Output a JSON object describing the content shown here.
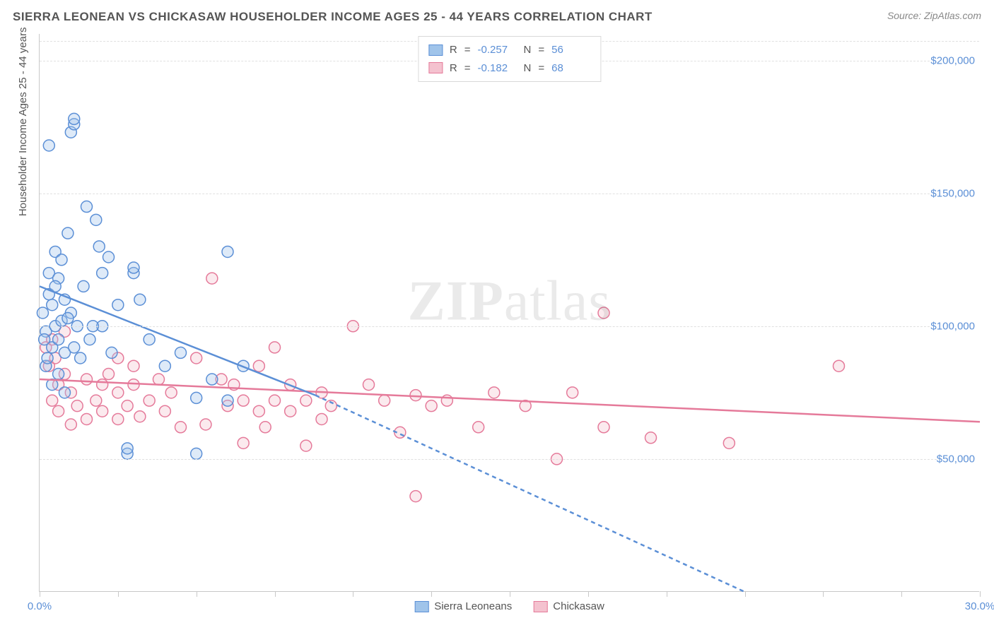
{
  "title": "SIERRA LEONEAN VS CHICKASAW HOUSEHOLDER INCOME AGES 25 - 44 YEARS CORRELATION CHART",
  "source": "Source: ZipAtlas.com",
  "ylabel": "Householder Income Ages 25 - 44 years",
  "watermark_bold": "ZIP",
  "watermark_rest": "atlas",
  "chart": {
    "type": "scatter",
    "background_color": "#ffffff",
    "grid_color": "#e0e0e0",
    "axis_color": "#c8c8c8",
    "label_color": "#5b8fd6",
    "text_color": "#555555",
    "xlim": [
      0,
      30
    ],
    "ylim": [
      0,
      210000
    ],
    "xticks": [
      0,
      2.5,
      5,
      7.5,
      10,
      12.5,
      15,
      17.5,
      20,
      22.5,
      25,
      27.5,
      30
    ],
    "xticks_labeled": {
      "0": "0.0%",
      "30": "30.0%"
    },
    "yticks": [
      50000,
      100000,
      150000,
      200000
    ],
    "ytick_labels": [
      "$50,000",
      "$100,000",
      "$150,000",
      "$200,000"
    ],
    "marker_radius": 8,
    "line_width": 2.5
  },
  "series": {
    "sierra_leoneans": {
      "label": "Sierra Leoneans",
      "color_fill": "#a0c4ea",
      "color_stroke": "#5b8fd6",
      "r_label": "R",
      "r_value": "-0.257",
      "n_label": "N",
      "n_value": "56",
      "trend_solid": {
        "x1": 0,
        "y1": 115000,
        "x2": 8.8,
        "y2": 74000
      },
      "trend_dashed": {
        "x1": 8.8,
        "y1": 74000,
        "x2": 22.5,
        "y2": 0
      },
      "data": [
        [
          0.1,
          105000
        ],
        [
          0.2,
          98000
        ],
        [
          0.3,
          112000
        ],
        [
          0.3,
          120000
        ],
        [
          0.4,
          108000
        ],
        [
          0.4,
          92000
        ],
        [
          0.5,
          100000
        ],
        [
          0.5,
          128000
        ],
        [
          0.6,
          118000
        ],
        [
          0.6,
          95000
        ],
        [
          0.7,
          102000
        ],
        [
          0.8,
          90000
        ],
        [
          0.8,
          110000
        ],
        [
          0.9,
          135000
        ],
        [
          1.0,
          105000
        ],
        [
          1.0,
          173000
        ],
        [
          1.1,
          176000
        ],
        [
          1.1,
          178000
        ],
        [
          0.3,
          168000
        ],
        [
          1.2,
          100000
        ],
        [
          1.3,
          88000
        ],
        [
          1.5,
          145000
        ],
        [
          1.6,
          95000
        ],
        [
          1.8,
          140000
        ],
        [
          1.9,
          130000
        ],
        [
          2.0,
          120000
        ],
        [
          2.0,
          100000
        ],
        [
          2.2,
          126000
        ],
        [
          2.5,
          108000
        ],
        [
          2.8,
          52000
        ],
        [
          2.8,
          54000
        ],
        [
          3.0,
          120000
        ],
        [
          3.0,
          122000
        ],
        [
          3.2,
          110000
        ],
        [
          3.5,
          95000
        ],
        [
          4.0,
          85000
        ],
        [
          4.5,
          90000
        ],
        [
          5.0,
          73000
        ],
        [
          5.0,
          52000
        ],
        [
          5.5,
          80000
        ],
        [
          6.0,
          128000
        ],
        [
          6.0,
          72000
        ],
        [
          6.5,
          85000
        ],
        [
          0.2,
          85000
        ],
        [
          0.4,
          78000
        ],
        [
          0.6,
          82000
        ],
        [
          0.8,
          75000
        ],
        [
          0.5,
          115000
        ],
        [
          0.7,
          125000
        ],
        [
          1.4,
          115000
        ],
        [
          0.15,
          95000
        ],
        [
          0.25,
          88000
        ],
        [
          0.9,
          103000
        ],
        [
          1.1,
          92000
        ],
        [
          1.7,
          100000
        ],
        [
          2.3,
          90000
        ]
      ]
    },
    "chickasaw": {
      "label": "Chickasaw",
      "color_fill": "#f4c2cf",
      "color_stroke": "#e57a9a",
      "r_label": "R",
      "r_value": "-0.182",
      "n_label": "N",
      "n_value": "68",
      "trend_solid": {
        "x1": 0,
        "y1": 80000,
        "x2": 30,
        "y2": 64000
      },
      "data": [
        [
          0.2,
          92000
        ],
        [
          0.3,
          85000
        ],
        [
          0.4,
          95000
        ],
        [
          0.5,
          88000
        ],
        [
          0.6,
          78000
        ],
        [
          0.8,
          82000
        ],
        [
          0.8,
          98000
        ],
        [
          1.0,
          75000
        ],
        [
          1.2,
          70000
        ],
        [
          1.5,
          80000
        ],
        [
          1.5,
          65000
        ],
        [
          1.8,
          72000
        ],
        [
          2.0,
          78000
        ],
        [
          2.0,
          68000
        ],
        [
          2.2,
          82000
        ],
        [
          2.5,
          75000
        ],
        [
          2.5,
          88000
        ],
        [
          2.5,
          65000
        ],
        [
          2.8,
          70000
        ],
        [
          3.0,
          78000
        ],
        [
          3.0,
          85000
        ],
        [
          3.2,
          66000
        ],
        [
          3.5,
          72000
        ],
        [
          3.8,
          80000
        ],
        [
          4.0,
          68000
        ],
        [
          4.2,
          75000
        ],
        [
          4.5,
          62000
        ],
        [
          5.0,
          88000
        ],
        [
          5.3,
          63000
        ],
        [
          5.5,
          118000
        ],
        [
          5.8,
          80000
        ],
        [
          6.0,
          70000
        ],
        [
          6.2,
          78000
        ],
        [
          6.5,
          56000
        ],
        [
          6.5,
          72000
        ],
        [
          7.0,
          85000
        ],
        [
          7.0,
          68000
        ],
        [
          7.2,
          62000
        ],
        [
          7.5,
          92000
        ],
        [
          7.5,
          72000
        ],
        [
          8.0,
          78000
        ],
        [
          8.0,
          68000
        ],
        [
          8.5,
          55000
        ],
        [
          8.5,
          72000
        ],
        [
          9.0,
          75000
        ],
        [
          9.0,
          65000
        ],
        [
          9.3,
          70000
        ],
        [
          10.0,
          100000
        ],
        [
          10.5,
          78000
        ],
        [
          11.0,
          72000
        ],
        [
          11.5,
          60000
        ],
        [
          12.0,
          74000
        ],
        [
          12.0,
          36000
        ],
        [
          12.5,
          70000
        ],
        [
          13.0,
          72000
        ],
        [
          14.0,
          62000
        ],
        [
          14.5,
          75000
        ],
        [
          15.5,
          70000
        ],
        [
          16.5,
          50000
        ],
        [
          17.0,
          75000
        ],
        [
          18.0,
          62000
        ],
        [
          18.0,
          105000
        ],
        [
          19.5,
          58000
        ],
        [
          22.0,
          56000
        ],
        [
          25.5,
          85000
        ],
        [
          0.4,
          72000
        ],
        [
          0.6,
          68000
        ],
        [
          1.0,
          63000
        ]
      ]
    }
  }
}
